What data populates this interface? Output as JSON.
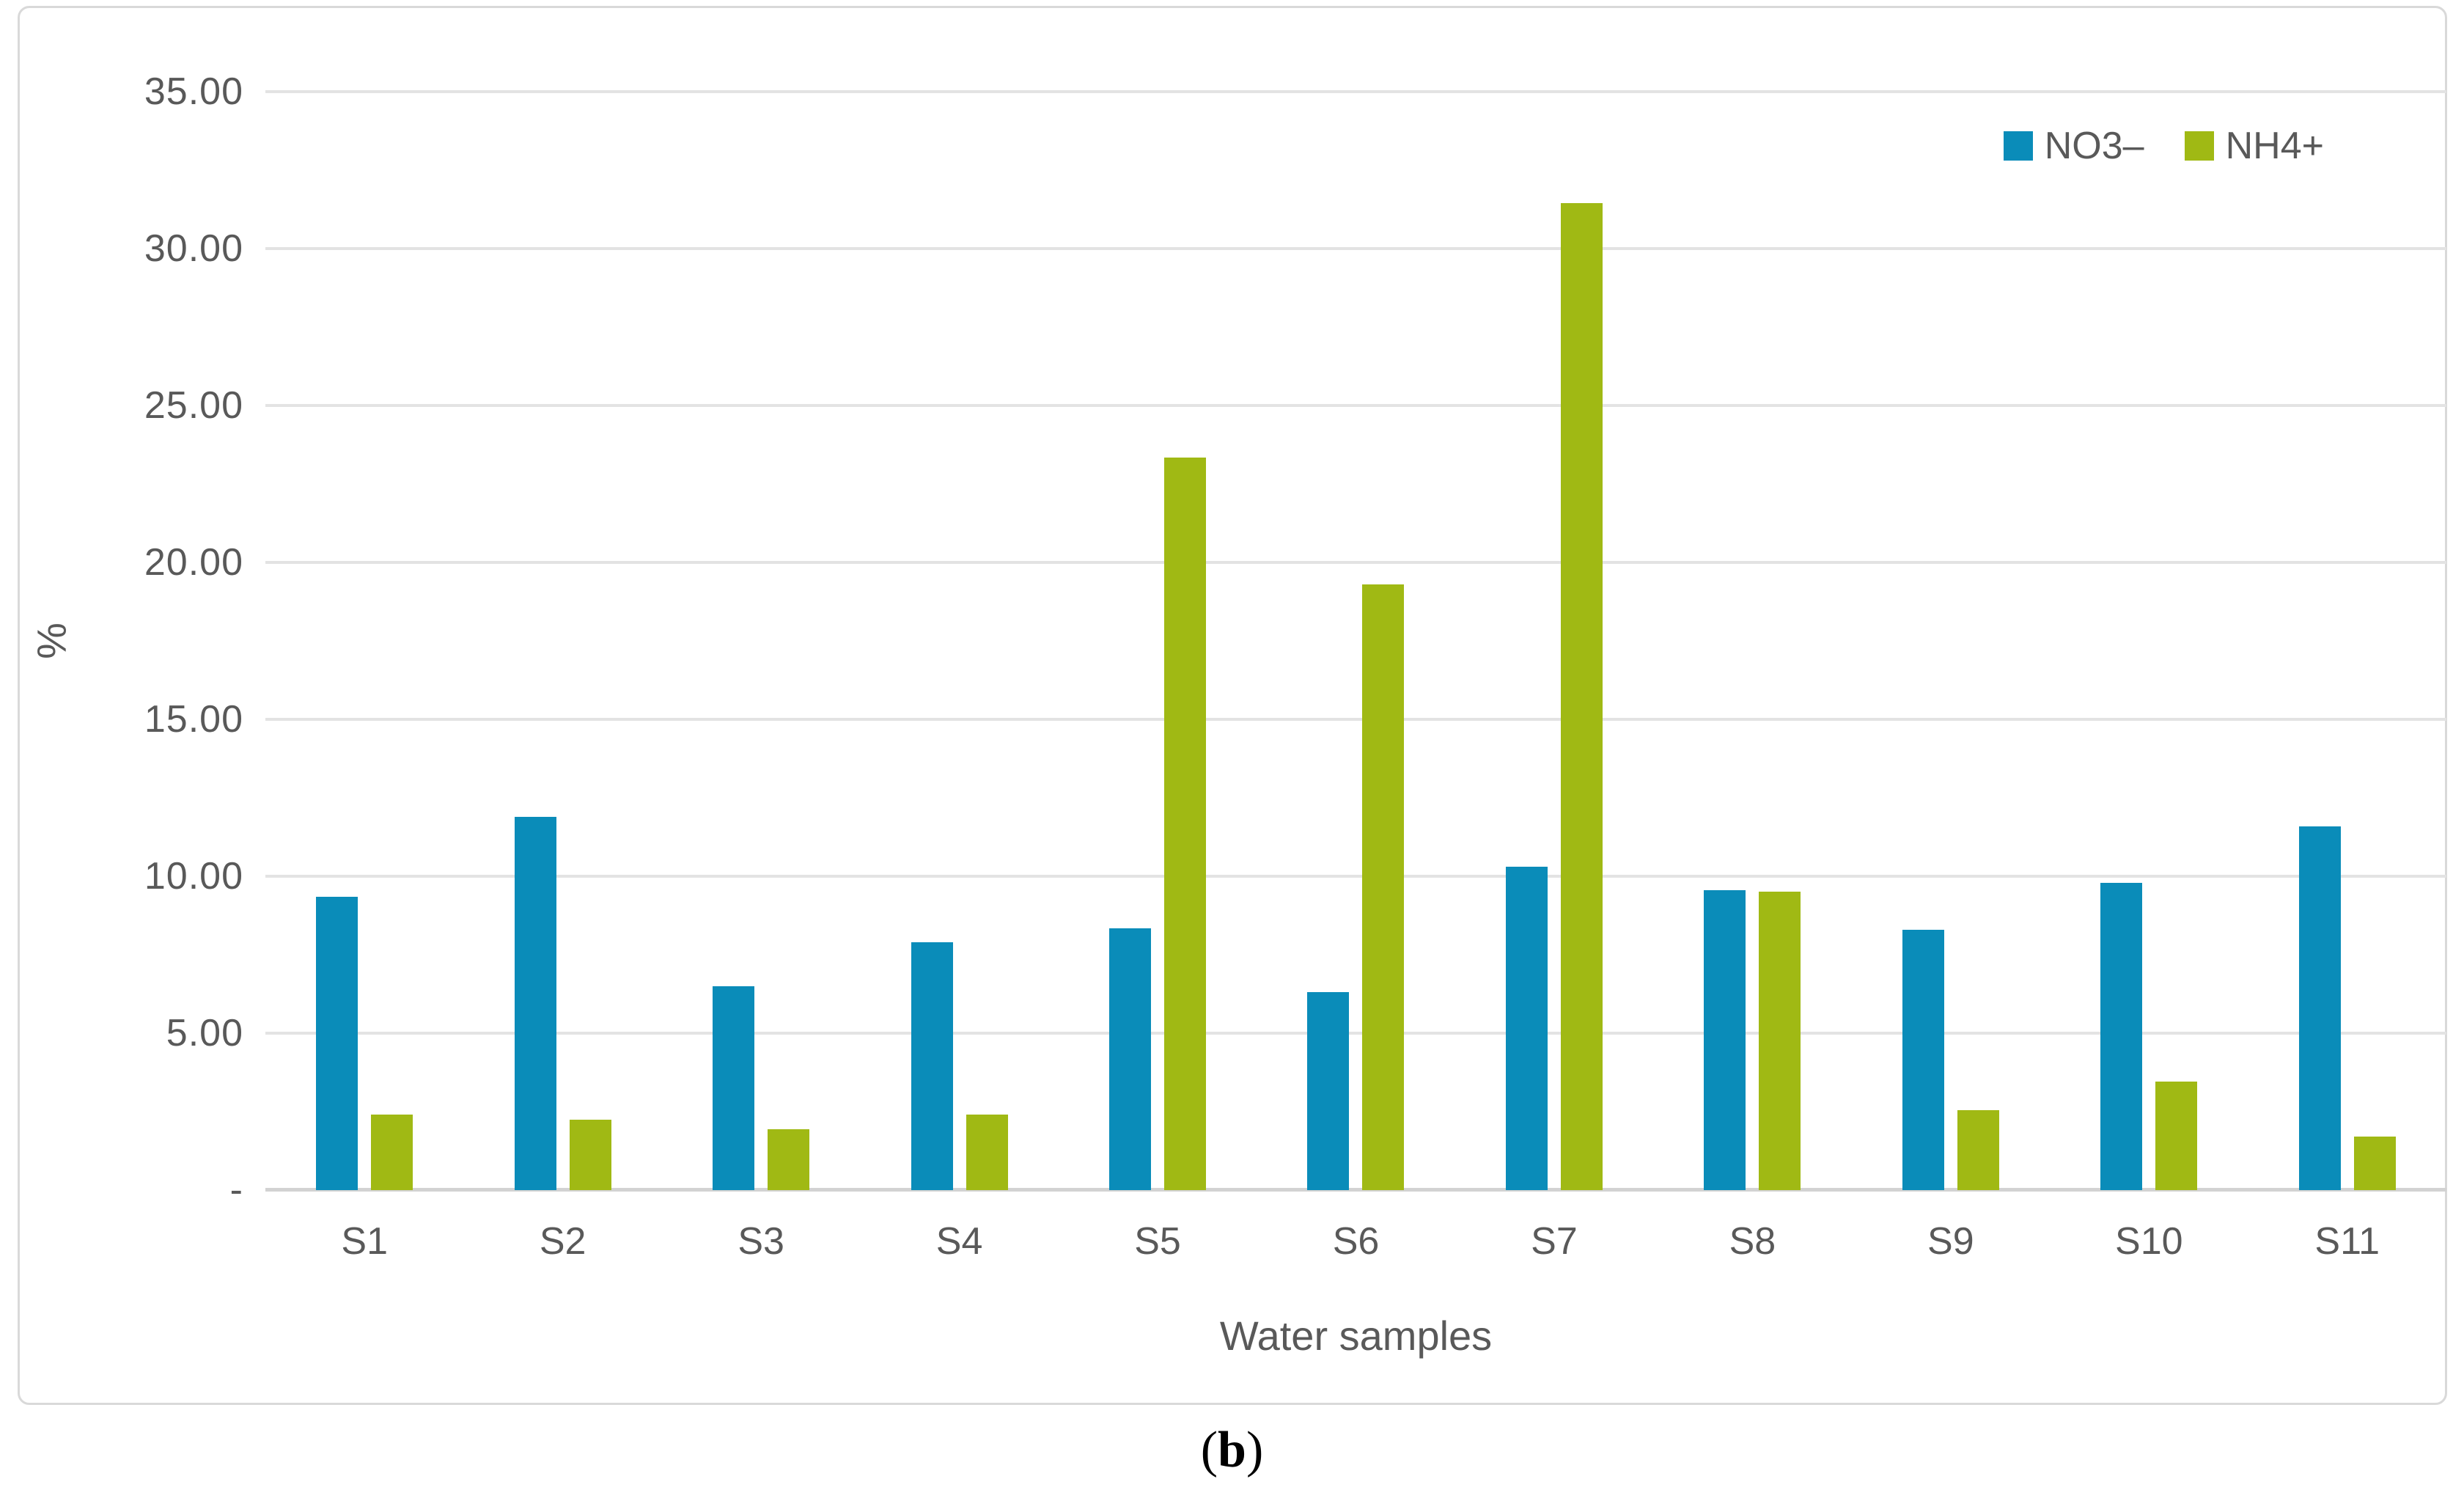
{
  "figure": {
    "caption": {
      "open": "(",
      "letter": "b",
      "close": ")"
    }
  },
  "chart_data": {
    "type": "bar",
    "title": "",
    "xlabel": "Water samples",
    "ylabel": "%",
    "ylim": [
      0,
      35
    ],
    "ytick_step": 5,
    "ytick_labels": [
      "35.00",
      "30.00",
      "25.00",
      "20.00",
      "15.00",
      "10.00",
      "5.00",
      "-"
    ],
    "grid": true,
    "legend_position": "top-right",
    "categories": [
      "S1",
      "S2",
      "S3",
      "S4",
      "S5",
      "S6",
      "S7",
      "S8",
      "S9",
      "S10",
      "S11"
    ],
    "series": [
      {
        "name": "NO3–",
        "color": "#0a8cb9",
        "values": [
          9.35,
          11.9,
          6.5,
          7.9,
          8.35,
          6.3,
          10.3,
          9.55,
          8.3,
          9.8,
          11.6
        ]
      },
      {
        "name": "NH4+",
        "color": "#a0b914",
        "values": [
          2.4,
          2.25,
          1.95,
          2.4,
          23.35,
          19.3,
          31.45,
          9.5,
          2.55,
          3.45,
          1.7
        ]
      }
    ],
    "gridline_color": "#e3e3e3",
    "axis_line_color": "#d2d2d2",
    "text_color": "#595959"
  }
}
